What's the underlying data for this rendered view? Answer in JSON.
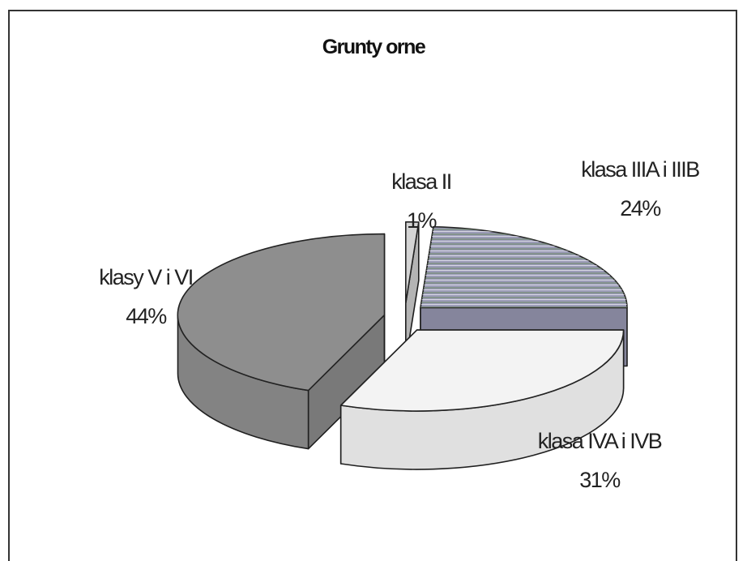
{
  "chart_data": {
    "type": "pie3d",
    "title": "Grunty orne",
    "categories": [
      "klasa II",
      "klasa IIIA i IIIB",
      "klasa IVA i IVB",
      "klasy V i VI"
    ],
    "values": [
      1,
      24,
      31,
      44
    ],
    "value_labels": [
      "1%",
      "24%",
      "31%",
      "44%"
    ],
    "colors": [
      "#d4d4d4",
      "#9c9cb8",
      "#f3f3f3",
      "#8e8e8e"
    ]
  }
}
